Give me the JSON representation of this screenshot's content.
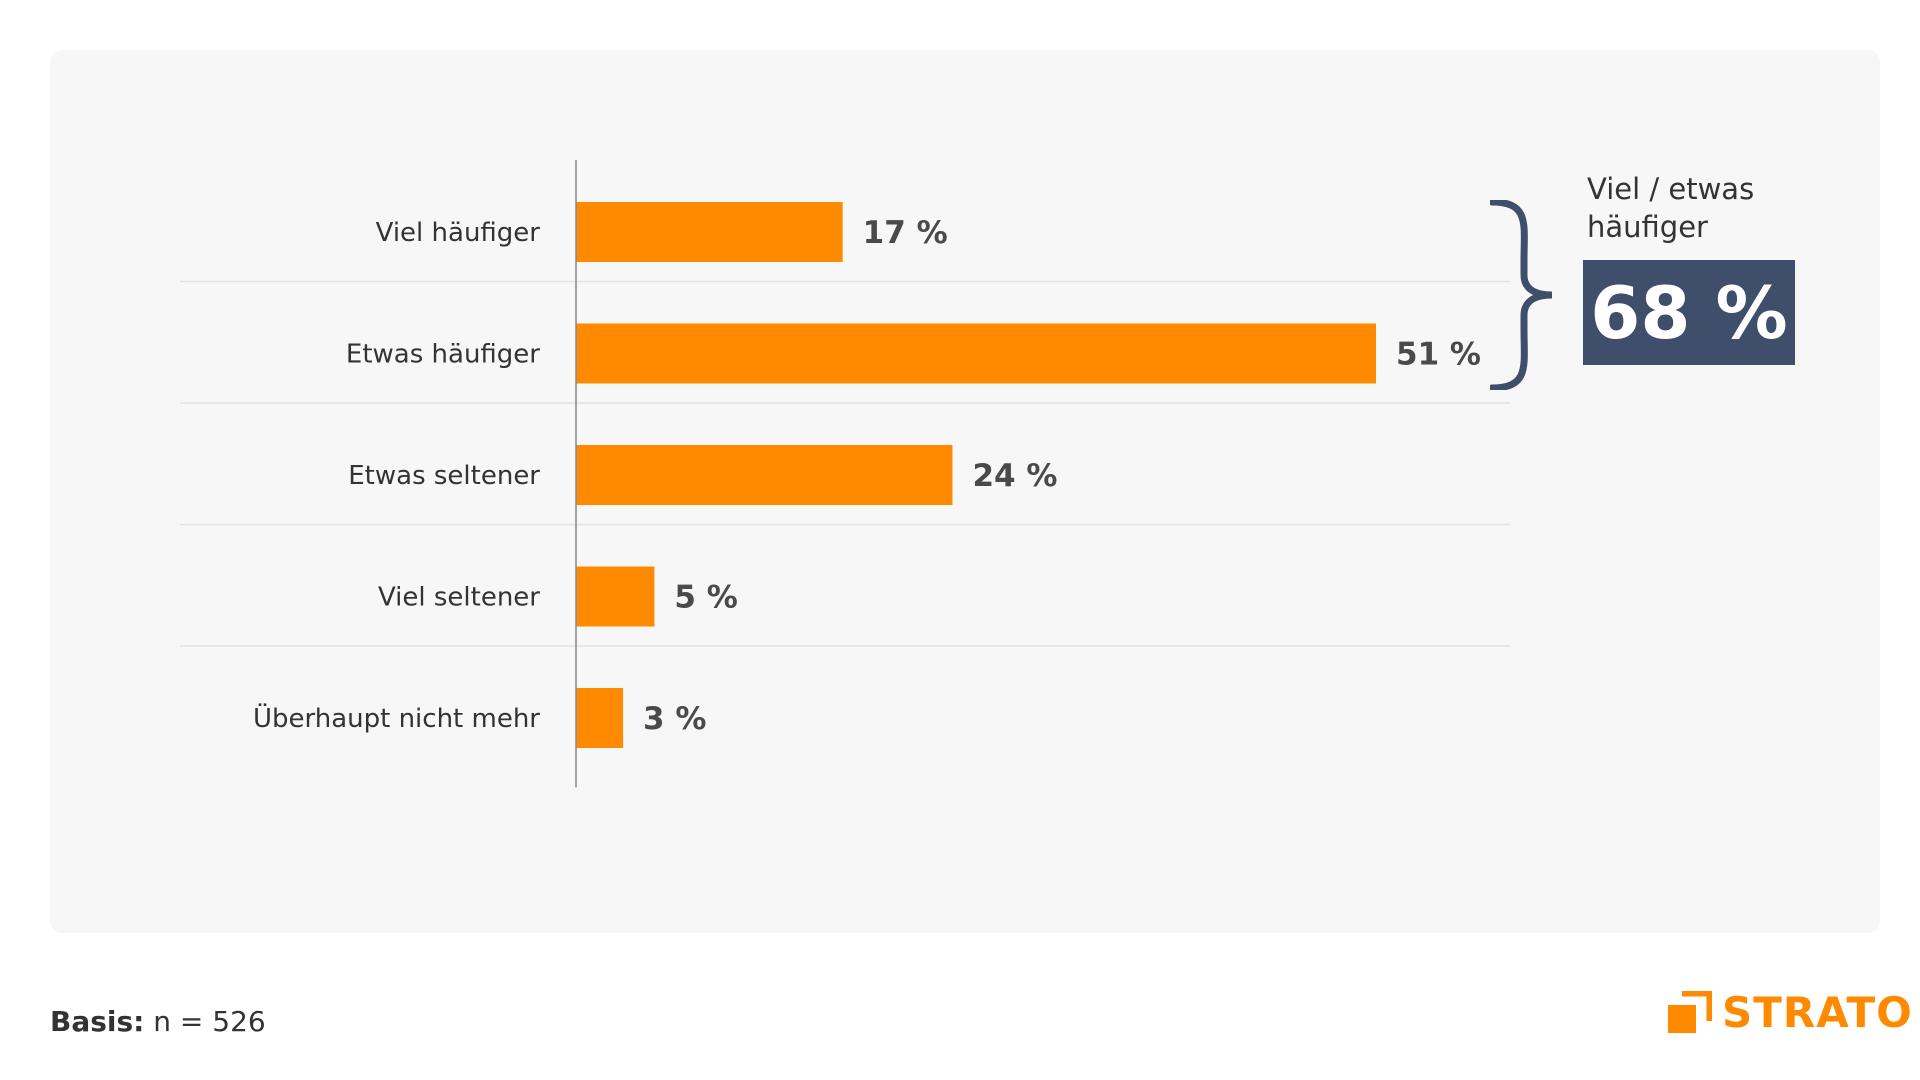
{
  "colors": {
    "bar": "#ff8a00",
    "summary_box": "#3f4e6b",
    "brace": "#3f4e6b",
    "brand": "#ff8a00",
    "panel": "#f7f7f7"
  },
  "chart_data": {
    "type": "bar",
    "orientation": "horizontal",
    "categories": [
      "Viel häufiger",
      "Etwas häufiger",
      "Etwas seltener",
      "Viel seltener",
      "Überhaupt nicht mehr"
    ],
    "values": [
      17,
      51,
      24,
      5,
      3
    ],
    "value_labels": [
      "17 %",
      "51 %",
      "24 %",
      "5 %",
      "3 %"
    ],
    "unit": "%",
    "xlim": [
      0,
      51
    ],
    "grid": "horizontal separators",
    "legend": "none"
  },
  "summary": {
    "caption": "Viel / etwas häufiger",
    "value": "68 %"
  },
  "footer": {
    "basis_label": "Basis:",
    "basis_value": " n = 526"
  },
  "logo": {
    "text": "STRATO"
  }
}
